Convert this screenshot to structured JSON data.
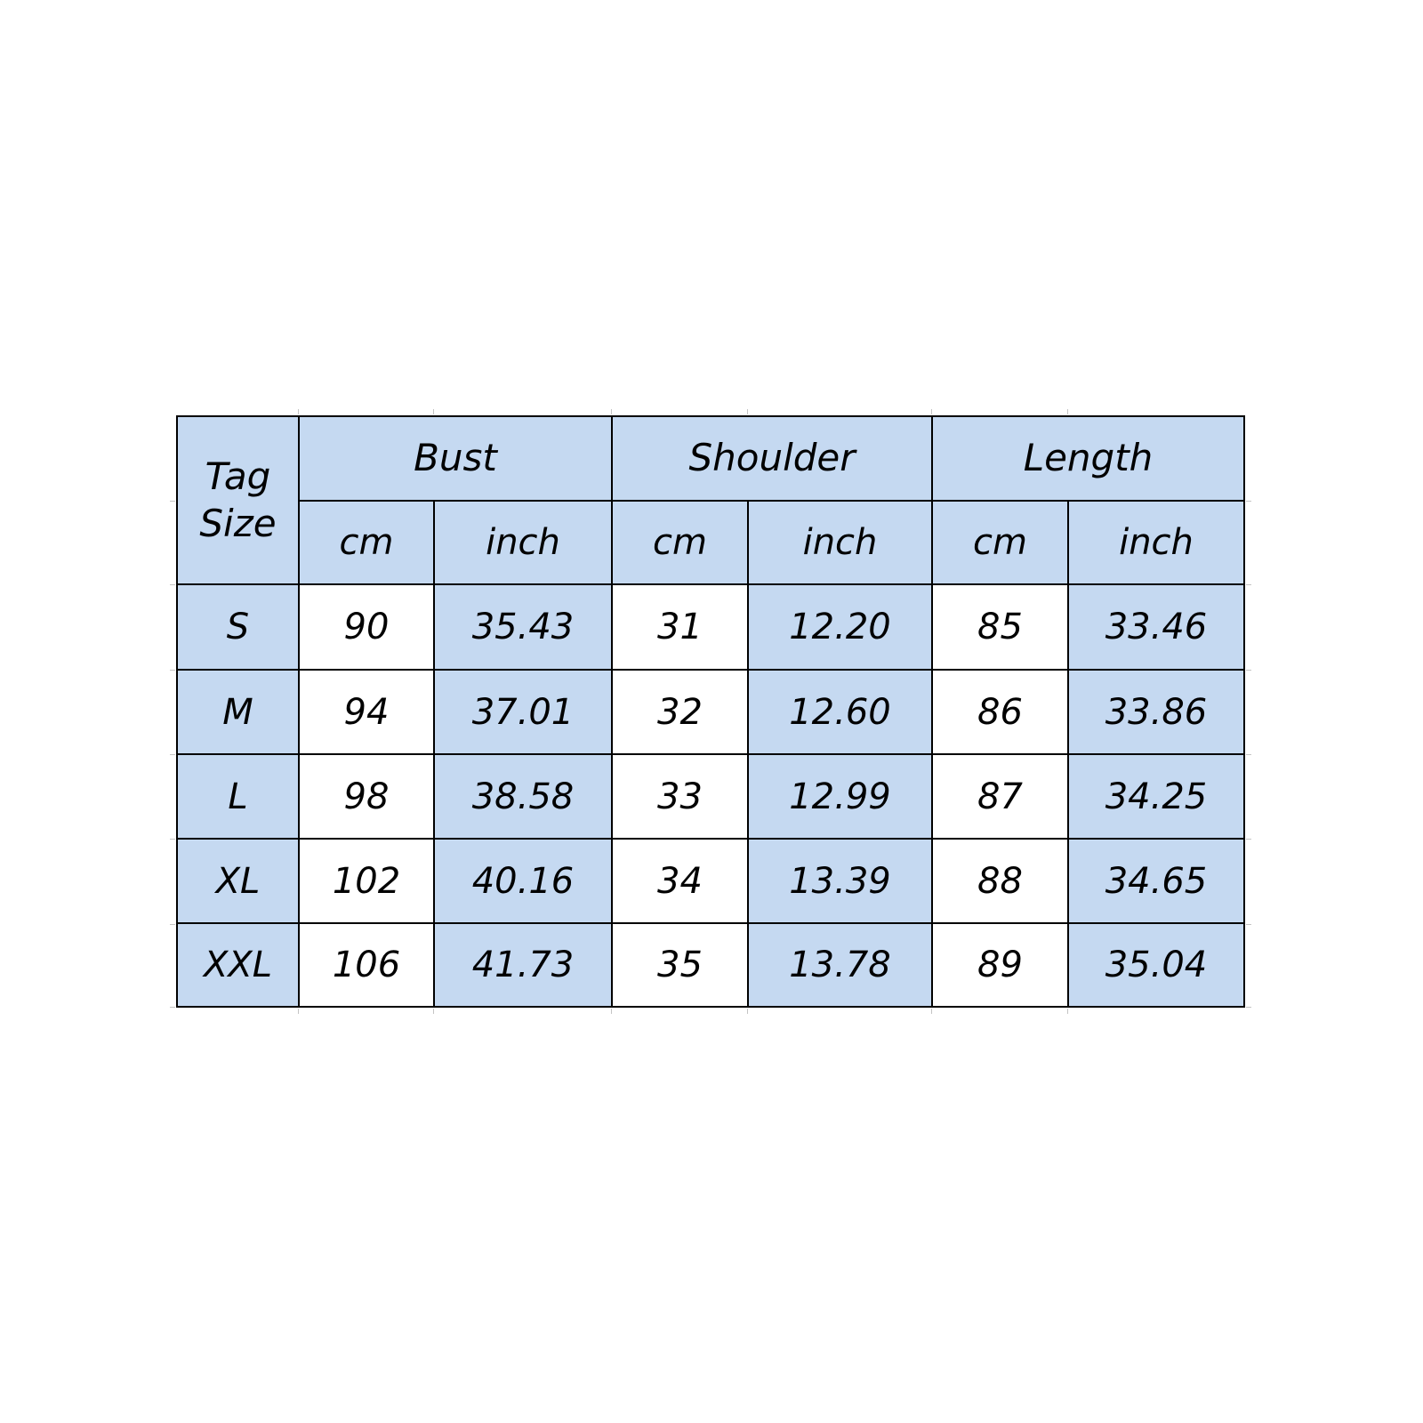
{
  "table": {
    "corner": {
      "line1": "Tag",
      "line2": "Size"
    },
    "column_groups": [
      {
        "label": "Bust"
      },
      {
        "label": "Shoulder"
      },
      {
        "label": "Length"
      }
    ],
    "units": {
      "cm": "cm",
      "inch": "inch"
    },
    "rows": [
      {
        "size": "S",
        "bust_cm": "90",
        "bust_inch": "35.43",
        "shoulder_cm": "31",
        "shoulder_inch": "12.20",
        "length_cm": "85",
        "length_inch": "33.46"
      },
      {
        "size": "M",
        "bust_cm": "94",
        "bust_inch": "37.01",
        "shoulder_cm": "32",
        "shoulder_inch": "12.60",
        "length_cm": "86",
        "length_inch": "33.86"
      },
      {
        "size": "L",
        "bust_cm": "98",
        "bust_inch": "38.58",
        "shoulder_cm": "33",
        "shoulder_inch": "12.99",
        "length_cm": "87",
        "length_inch": "34.25"
      },
      {
        "size": "XL",
        "bust_cm": "102",
        "bust_inch": "40.16",
        "shoulder_cm": "34",
        "shoulder_inch": "13.39",
        "length_cm": "88",
        "length_inch": "34.65"
      },
      {
        "size": "XXL",
        "bust_cm": "106",
        "bust_inch": "41.73",
        "shoulder_cm": "35",
        "shoulder_inch": "13.78",
        "length_cm": "89",
        "length_inch": "35.04"
      }
    ],
    "colors": {
      "header_fill": "#c5d9f1",
      "inch_fill": "#c5d9f1",
      "cm_fill": "#ffffff",
      "border": "#000000",
      "text": "#000000",
      "background": "#ffffff"
    }
  },
  "chart_data": {
    "type": "table",
    "columns": [
      "Tag Size",
      "Bust (cm)",
      "Bust (inch)",
      "Shoulder (cm)",
      "Shoulder (inch)",
      "Length (cm)",
      "Length (inch)"
    ],
    "rows": [
      [
        "S",
        90,
        35.43,
        31,
        12.2,
        85,
        33.46
      ],
      [
        "M",
        94,
        37.01,
        32,
        12.6,
        86,
        33.86
      ],
      [
        "L",
        98,
        38.58,
        33,
        12.99,
        87,
        34.25
      ],
      [
        "XL",
        102,
        40.16,
        34,
        13.39,
        88,
        34.65
      ],
      [
        "XXL",
        106,
        41.73,
        35,
        13.78,
        89,
        35.04
      ]
    ]
  }
}
